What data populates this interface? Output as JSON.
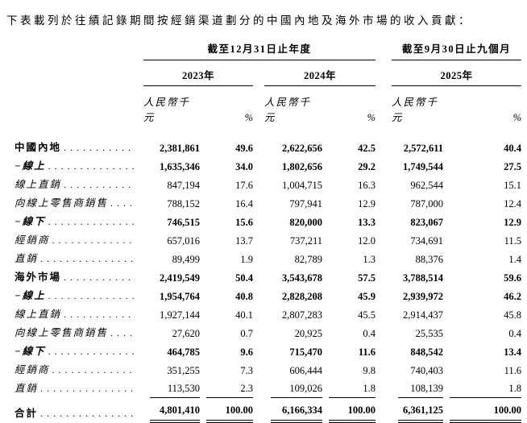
{
  "title": "下表載列於往績記錄期間按經銷渠道劃分的中國內地及海外市場的收入貢獻：",
  "table": {
    "period_headers": [
      "截至12月31日止年度",
      "截至9月30日止九個月"
    ],
    "year_headers": [
      "2023年",
      "2024年",
      "2025年"
    ],
    "unit_label": "人民幣千元",
    "pct_label": "%",
    "rows": [
      {
        "label": "中國內地",
        "style": "primary",
        "v": [
          "2,381,861",
          "49.6",
          "2,622,656",
          "42.5",
          "2,572,611",
          "40.4"
        ]
      },
      {
        "label": "−線上",
        "style": "subtotal",
        "v": [
          "1,635,346",
          "34.0",
          "1,802,656",
          "29.2",
          "1,749,544",
          "27.5"
        ]
      },
      {
        "label": "線上直銷",
        "style": "item",
        "v": [
          "847,194",
          "17.6",
          "1,004,715",
          "16.3",
          "962,544",
          "15.1"
        ]
      },
      {
        "label": "向線上零售商銷售",
        "style": "item",
        "v": [
          "788,152",
          "16.4",
          "797,941",
          "12.9",
          "787,000",
          "12.4"
        ]
      },
      {
        "label": "−線下",
        "style": "subtotal",
        "v": [
          "746,515",
          "15.6",
          "820,000",
          "13.3",
          "823,067",
          "12.9"
        ]
      },
      {
        "label": "經銷商",
        "style": "item",
        "v": [
          "657,016",
          "13.7",
          "737,211",
          "12.0",
          "734,691",
          "11.5"
        ]
      },
      {
        "label": "直銷",
        "style": "item",
        "v": [
          "89,499",
          "1.9",
          "82,789",
          "1.3",
          "88,376",
          "1.4"
        ]
      },
      {
        "label": "海外市場",
        "style": "primary",
        "v": [
          "2,419,549",
          "50.4",
          "3,543,678",
          "57.5",
          "3,788,514",
          "59.6"
        ]
      },
      {
        "label": "−線上",
        "style": "subtotal",
        "v": [
          "1,954,764",
          "40.8",
          "2,828,208",
          "45.9",
          "2,939,972",
          "46.2"
        ]
      },
      {
        "label": "線上直銷",
        "style": "item",
        "v": [
          "1,927,144",
          "40.1",
          "2,807,283",
          "45.5",
          "2,914,437",
          "45.8"
        ]
      },
      {
        "label": "向線上零售商銷售",
        "style": "item",
        "v": [
          "27,620",
          "0.7",
          "20,925",
          "0.4",
          "25,535",
          "0.4"
        ]
      },
      {
        "label": "−線下",
        "style": "subtotal",
        "v": [
          "464,785",
          "9.6",
          "715,470",
          "11.6",
          "848,542",
          "13.4"
        ]
      },
      {
        "label": "經銷商",
        "style": "item",
        "v": [
          "351,255",
          "7.3",
          "606,444",
          "9.8",
          "740,403",
          "11.6"
        ]
      },
      {
        "label": "直銷",
        "style": "item",
        "underline": "single",
        "v": [
          "113,530",
          "2.3",
          "109,026",
          "1.8",
          "108,139",
          "1.8"
        ]
      },
      {
        "label": "合計",
        "style": "total",
        "underline": "double",
        "v": [
          "4,801,410",
          "100.00",
          "6,166,334",
          "100.00",
          "6,361,125",
          "100.00"
        ]
      }
    ]
  }
}
